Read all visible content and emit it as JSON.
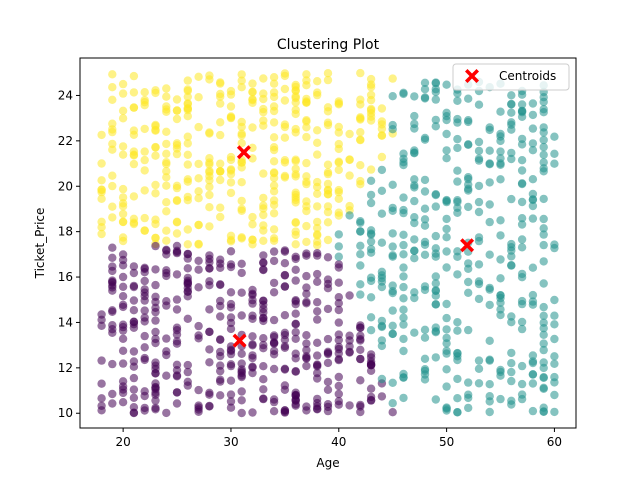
{
  "chart_data": {
    "type": "scatter",
    "title": "Clustering Plot",
    "xlabel": "Age",
    "ylabel": "Ticket_Price",
    "xlim": [
      16,
      62
    ],
    "ylim": [
      9.35,
      25.65
    ],
    "xticks": [
      20,
      30,
      40,
      50,
      60
    ],
    "yticks": [
      10,
      12,
      14,
      16,
      18,
      20,
      22,
      24
    ],
    "grid": false,
    "legend": {
      "placement": "top-right",
      "entries": [
        "Centroids"
      ]
    },
    "marker_alpha": 0.55,
    "clusters": [
      {
        "color": "#fde725",
        "age_range": [
          18,
          45
        ],
        "price_range": [
          17.4,
          25
        ],
        "approx_points": 400,
        "rule": "upper-left"
      },
      {
        "color": "#440154",
        "age_range": [
          18,
          45
        ],
        "price_range": [
          10,
          17.4
        ],
        "approx_points": 440,
        "rule": "lower-left"
      },
      {
        "color": "#21918c",
        "age_range": [
          38,
          60
        ],
        "price_range": [
          10,
          24.6
        ],
        "approx_points": 420,
        "rule": "right"
      }
    ],
    "centroids": {
      "name": "Centroids",
      "color": "#ff0000",
      "points": [
        {
          "x": 31.2,
          "y": 21.5
        },
        {
          "x": 30.8,
          "y": 13.2
        },
        {
          "x": 51.9,
          "y": 17.4
        }
      ]
    }
  }
}
